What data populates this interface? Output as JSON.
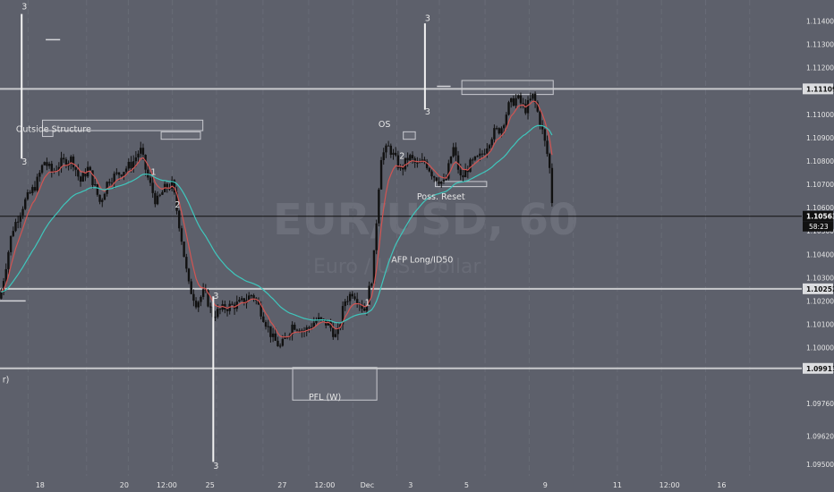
{
  "chart_data": {
    "type": "candlestick",
    "symbol_watermark": "EUR/USD, 60",
    "watermark_sub": "Euro / U.S. Dollar",
    "y_axis": {
      "min": 1.0945,
      "max": 1.1149,
      "ticks": [
        "1.11400",
        "1.11300",
        "1.11200",
        "1.11100",
        "1.11000",
        "1.10900",
        "1.10800",
        "1.10700",
        "1.10600",
        "1.10500",
        "1.10400",
        "1.10300",
        "1.10200",
        "1.10100",
        "1.10000",
        "1.09900",
        "1.09760",
        "1.09620",
        "1.09500"
      ],
      "tick_values": [
        1.114,
        1.113,
        1.112,
        1.111,
        1.11,
        1.109,
        1.108,
        1.107,
        1.106,
        1.105,
        1.104,
        1.103,
        1.102,
        1.101,
        1.1,
        1.099,
        1.0976,
        1.0962,
        1.095
      ]
    },
    "x_axis": {
      "labels": [
        {
          "text": "18",
          "t": 0.05
        },
        {
          "text": "20",
          "t": 0.155
        },
        {
          "text": "12:00",
          "t": 0.208
        },
        {
          "text": "25",
          "t": 0.262
        },
        {
          "text": "27",
          "t": 0.352
        },
        {
          "text": "12:00",
          "t": 0.405
        },
        {
          "text": "Dec",
          "t": 0.458
        },
        {
          "text": "3",
          "t": 0.512
        },
        {
          "text": "5",
          "t": 0.582
        },
        {
          "text": "9",
          "t": 0.68
        },
        {
          "text": "11",
          "t": 0.77
        },
        {
          "text": "12:00",
          "t": 0.835
        },
        {
          "text": "16",
          "t": 0.9
        }
      ]
    },
    "price_levels": [
      {
        "value": 1.11109,
        "label": "1.11109",
        "style": "line"
      },
      {
        "value": 1.10563,
        "label": "1.10563",
        "style": "current",
        "countdown": "58:23"
      },
      {
        "value": 1.10252,
        "label": "1.10252",
        "style": "line"
      },
      {
        "value": 1.09911,
        "label": "1.09911",
        "style": "line"
      }
    ],
    "price_path": [
      [
        0.0,
        1.1021
      ],
      [
        0.015,
        1.105
      ],
      [
        0.03,
        1.1062
      ],
      [
        0.045,
        1.107
      ],
      [
        0.055,
        1.108
      ],
      [
        0.065,
        1.1075
      ],
      [
        0.075,
        1.1079
      ],
      [
        0.09,
        1.1081
      ],
      [
        0.1,
        1.1071
      ],
      [
        0.11,
        1.1077
      ],
      [
        0.125,
        1.1062
      ],
      [
        0.135,
        1.1072
      ],
      [
        0.15,
        1.1075
      ],
      [
        0.165,
        1.1079
      ],
      [
        0.175,
        1.1085
      ],
      [
        0.185,
        1.1072
      ],
      [
        0.195,
        1.1062
      ],
      [
        0.205,
        1.1068
      ],
      [
        0.215,
        1.107
      ],
      [
        0.225,
        1.105
      ],
      [
        0.235,
        1.1027
      ],
      [
        0.245,
        1.1019
      ],
      [
        0.255,
        1.1024
      ],
      [
        0.265,
        1.1014
      ],
      [
        0.28,
        1.1017
      ],
      [
        0.3,
        1.1019
      ],
      [
        0.315,
        1.1023
      ],
      [
        0.325,
        1.1016
      ],
      [
        0.34,
        1.1004
      ],
      [
        0.35,
        1.1
      ],
      [
        0.365,
        1.101
      ],
      [
        0.38,
        1.1007
      ],
      [
        0.395,
        1.1012
      ],
      [
        0.41,
        1.101
      ],
      [
        0.42,
        1.1004
      ],
      [
        0.43,
        1.102
      ],
      [
        0.44,
        1.1024
      ],
      [
        0.455,
        1.1016
      ],
      [
        0.465,
        1.1032
      ],
      [
        0.475,
        1.1082
      ],
      [
        0.485,
        1.1086
      ],
      [
        0.5,
        1.1076
      ],
      [
        0.51,
        1.1082
      ],
      [
        0.52,
        1.1078
      ],
      [
        0.53,
        1.108
      ],
      [
        0.54,
        1.1074
      ],
      [
        0.555,
        1.107
      ],
      [
        0.565,
        1.1086
      ],
      [
        0.575,
        1.1072
      ],
      [
        0.585,
        1.1078
      ],
      [
        0.6,
        1.1082
      ],
      [
        0.615,
        1.1092
      ],
      [
        0.625,
        1.1094
      ],
      [
        0.635,
        1.1104
      ],
      [
        0.645,
        1.1107
      ],
      [
        0.655,
        1.1102
      ],
      [
        0.665,
        1.1108
      ],
      [
        0.675,
        1.1095
      ],
      [
        0.685,
        1.1079
      ],
      [
        0.69,
        1.1056
      ]
    ],
    "annotations": [
      {
        "text": "Outside Structure",
        "t": 0.02,
        "v": 1.10925
      },
      {
        "text": "OS",
        "t": 0.472,
        "v": 1.10945
      },
      {
        "text": "Poss. Reset",
        "t": 0.52,
        "v": 1.10635
      },
      {
        "text": "AFP Long/ID50",
        "t": 0.488,
        "v": 1.10365
      },
      {
        "text": "PFL (W)",
        "t": 0.385,
        "v": 1.09775
      },
      {
        "text": "3",
        "t": 0.027,
        "v": 1.1145
      },
      {
        "text": "3",
        "t": 0.027,
        "v": 1.10785
      },
      {
        "text": "1",
        "t": 0.188,
        "v": 1.1074
      },
      {
        "text": "2",
        "t": 0.218,
        "v": 1.106
      },
      {
        "text": "3",
        "t": 0.266,
        "v": 1.1021
      },
      {
        "text": "3",
        "t": 0.266,
        "v": 1.0948
      },
      {
        "text": "1",
        "t": 0.455,
        "v": 1.1018
      },
      {
        "text": "2",
        "t": 0.498,
        "v": 1.1081
      },
      {
        "text": "3",
        "t": 0.53,
        "v": 1.114
      },
      {
        "text": "3",
        "t": 0.53,
        "v": 1.11
      },
      {
        "text": "r)",
        "t": 0.003,
        "v": 1.0985
      }
    ],
    "zones": [
      {
        "t0": 0.053,
        "t1": 0.253,
        "v0": 1.1093,
        "v1": 1.10975
      },
      {
        "t0": 0.053,
        "t1": 0.066,
        "v0": 1.10905,
        "v1": 1.1093
      },
      {
        "t0": 0.201,
        "t1": 0.25,
        "v0": 1.10893,
        "v1": 1.10925
      },
      {
        "t0": 0.503,
        "t1": 0.518,
        "v0": 1.10893,
        "v1": 1.10925
      },
      {
        "t0": 0.576,
        "t1": 0.69,
        "v0": 1.11085,
        "v1": 1.11145
      },
      {
        "t0": 0.543,
        "t1": 0.607,
        "v0": 1.1069,
        "v1": 1.10712
      },
      {
        "t0": 0.365,
        "t1": 0.47,
        "v0": 1.09775,
        "v1": 1.09915
      }
    ],
    "colors": {
      "background": "#5d606b",
      "candle_body": "#111111",
      "ema_fast": "#d25452",
      "ema_slow": "#3fc7bd",
      "level_line": "#c8c9cc",
      "current_line": "#111111",
      "axis_text": "#e6e6e6"
    }
  }
}
